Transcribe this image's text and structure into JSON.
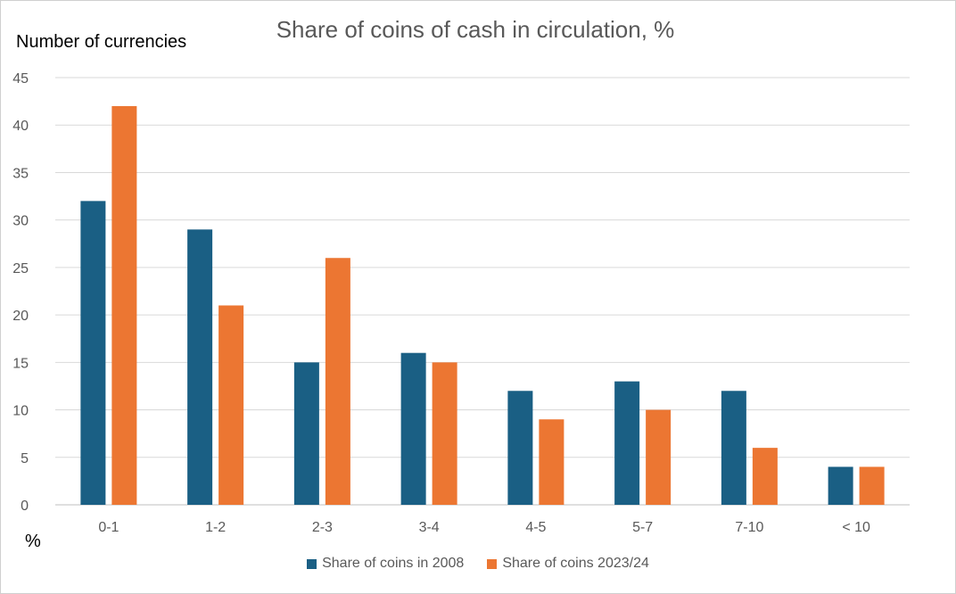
{
  "chart_data": {
    "type": "bar",
    "title": "Share of coins of cash in circulation, %",
    "ylabel": "Number of currencies",
    "xlabel": "%",
    "categories": [
      "0-1",
      "1-2",
      "2-3",
      "3-4",
      "4-5",
      "5-7",
      "7-10",
      "< 10"
    ],
    "series": [
      {
        "name": "Share of coins in 2008",
        "color": "#1a5f84",
        "values": [
          32,
          29,
          15,
          16,
          12,
          13,
          12,
          4
        ]
      },
      {
        "name": "Share of coins 2023/24",
        "color": "#ec7632",
        "values": [
          42,
          21,
          26,
          15,
          9,
          10,
          6,
          4
        ]
      }
    ],
    "ylim": [
      0,
      45
    ],
    "yticks": [
      0,
      5,
      10,
      15,
      20,
      25,
      30,
      35,
      40,
      45
    ],
    "grid": true,
    "legend_position": "bottom"
  }
}
